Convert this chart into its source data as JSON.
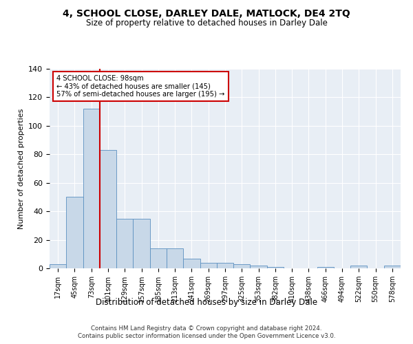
{
  "title": "4, SCHOOL CLOSE, DARLEY DALE, MATLOCK, DE4 2TQ",
  "subtitle": "Size of property relative to detached houses in Darley Dale",
  "xlabel_bottom": "Distribution of detached houses by size in Darley Dale",
  "ylabel": "Number of detached properties",
  "footer_line1": "Contains HM Land Registry data © Crown copyright and database right 2024.",
  "footer_line2": "Contains public sector information licensed under the Open Government Licence v3.0.",
  "bar_color": "#c8d8e8",
  "bar_edge_color": "#5a8fc0",
  "background_color": "#e8eef5",
  "categories": [
    "17sqm",
    "45sqm",
    "73sqm",
    "101sqm",
    "129sqm",
    "157sqm",
    "185sqm",
    "213sqm",
    "241sqm",
    "269sqm",
    "297sqm",
    "325sqm",
    "353sqm",
    "382sqm",
    "410sqm",
    "438sqm",
    "466sqm",
    "494sqm",
    "522sqm",
    "550sqm",
    "578sqm"
  ],
  "values": [
    3,
    50,
    112,
    83,
    35,
    35,
    14,
    14,
    7,
    4,
    4,
    3,
    2,
    1,
    0,
    0,
    1,
    0,
    2,
    0,
    2
  ],
  "ylim": [
    0,
    140
  ],
  "yticks": [
    0,
    20,
    40,
    60,
    80,
    100,
    120,
    140
  ],
  "property_label": "4 SCHOOL CLOSE: 98sqm",
  "annotation_line1": "← 43% of detached houses are smaller (145)",
  "annotation_line2": "57% of semi-detached houses are larger (195) →",
  "vline_color": "#cc0000",
  "vline_bar_index": 2.5,
  "annotation_box_color": "#ffffff",
  "annotation_box_edge": "#cc0000"
}
